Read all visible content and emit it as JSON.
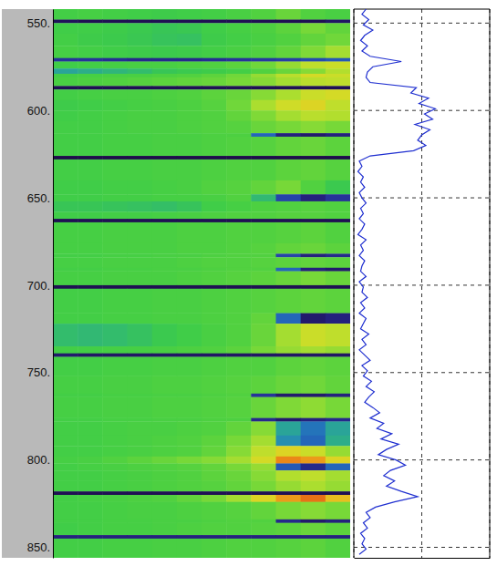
{
  "chart_data": {
    "type": "heatmap",
    "ylim": [
      542,
      856
    ],
    "yticks": [
      {
        "value": 550,
        "label": "550."
      },
      {
        "value": 600,
        "label": "600."
      },
      {
        "value": 650,
        "label": "650."
      },
      {
        "value": 700,
        "label": "700."
      },
      {
        "value": 750,
        "label": "750."
      },
      {
        "value": 800,
        "label": "800."
      },
      {
        "value": 850,
        "label": "850."
      }
    ],
    "tick_labels": "y",
    "grid": true,
    "heatmap": {
      "zlim": [
        0,
        10
      ],
      "y_edges": [
        542,
        548,
        550,
        556,
        563,
        570,
        572,
        576,
        579,
        581,
        586,
        588,
        594,
        600,
        606,
        613,
        615,
        626,
        628,
        640,
        648,
        652,
        658,
        662,
        664,
        676,
        682,
        684,
        690,
        692,
        700,
        702,
        716,
        722,
        735,
        739,
        741,
        752,
        762,
        764,
        776,
        778,
        786,
        792,
        798,
        802,
        806,
        812,
        818,
        820,
        824,
        834,
        836,
        843,
        845,
        856
      ],
      "cells": [
        [
          4.6,
          4.7,
          4.6,
          4.5,
          4.4,
          4.5,
          4.6,
          4.8,
          5.0,
          5.4,
          5.0,
          4.8
        ],
        [
          0.4,
          0.3,
          0.3,
          0.3,
          0.3,
          0.3,
          0.3,
          0.3,
          0.3,
          0.3,
          0.3,
          0.5
        ],
        [
          4.5,
          4.5,
          4.4,
          4.2,
          4.0,
          4.1,
          4.5,
          4.7,
          4.9,
          5.2,
          5.6,
          5.3
        ],
        [
          4.6,
          4.4,
          4.3,
          4.1,
          3.9,
          3.8,
          4.4,
          4.6,
          4.8,
          5.0,
          5.3,
          5.5
        ],
        [
          4.7,
          4.6,
          4.5,
          4.4,
          4.3,
          4.4,
          4.6,
          4.8,
          5.0,
          5.3,
          5.7,
          6.2
        ],
        [
          1.2,
          1.2,
          1.1,
          1.0,
          1.0,
          1.0,
          1.1,
          1.2,
          1.3,
          1.4,
          1.6,
          1.8
        ],
        [
          4.5,
          4.6,
          4.7,
          4.8,
          4.8,
          4.9,
          5.0,
          5.2,
          5.5,
          6.0,
          6.6,
          6.8
        ],
        [
          3.0,
          3.2,
          3.4,
          3.6,
          4.0,
          4.2,
          4.4,
          4.6,
          5.0,
          5.4,
          5.8,
          6.4
        ],
        [
          4.6,
          4.7,
          4.8,
          4.8,
          4.9,
          5.0,
          5.2,
          5.5,
          6.0,
          6.5,
          7.0,
          6.8
        ],
        [
          4.8,
          4.9,
          5.0,
          5.1,
          5.2,
          5.3,
          5.4,
          5.6,
          5.8,
          6.2,
          6.5,
          6.6
        ],
        [
          0.3,
          0.3,
          0.3,
          0.3,
          0.3,
          0.3,
          0.3,
          0.3,
          0.3,
          0.3,
          0.3,
          0.3
        ],
        [
          4.6,
          4.7,
          4.8,
          4.8,
          4.9,
          5.0,
          5.2,
          5.4,
          5.8,
          6.3,
          6.8,
          7.0
        ],
        [
          4.4,
          4.5,
          4.6,
          4.7,
          4.8,
          4.9,
          5.1,
          5.5,
          6.3,
          6.9,
          7.2,
          6.6
        ],
        [
          4.5,
          4.6,
          4.7,
          4.8,
          4.8,
          4.9,
          5.0,
          5.3,
          5.7,
          6.2,
          6.5,
          6.4
        ],
        [
          4.6,
          4.6,
          4.7,
          4.8,
          4.8,
          4.9,
          5.0,
          5.1,
          5.4,
          5.6,
          5.8,
          5.6
        ],
        [
          4.6,
          4.6,
          4.7,
          4.7,
          4.8,
          4.8,
          4.9,
          4.9,
          2.0,
          0.8,
          0.6,
          0.8
        ],
        [
          4.6,
          4.6,
          4.7,
          4.7,
          4.8,
          4.8,
          4.9,
          5.0,
          5.1,
          5.3,
          5.4,
          5.2
        ],
        [
          0.2,
          0.2,
          0.2,
          0.2,
          0.2,
          0.2,
          0.2,
          0.2,
          0.2,
          0.2,
          0.2,
          0.2
        ],
        [
          4.6,
          4.6,
          4.7,
          4.7,
          4.8,
          4.8,
          4.9,
          5.0,
          5.0,
          5.2,
          5.3,
          5.1
        ],
        [
          4.5,
          4.5,
          4.6,
          4.6,
          4.7,
          4.8,
          5.0,
          5.1,
          5.3,
          5.6,
          5.0,
          4.2
        ],
        [
          4.5,
          4.5,
          4.6,
          4.6,
          4.7,
          4.7,
          4.8,
          5.0,
          3.5,
          1.5,
          0.8,
          1.2
        ],
        [
          4.0,
          4.0,
          3.9,
          3.8,
          3.7,
          3.9,
          4.5,
          4.7,
          4.9,
          5.0,
          5.1,
          5.0
        ],
        [
          4.5,
          4.5,
          4.6,
          4.6,
          4.7,
          4.8,
          4.9,
          5.0,
          5.0,
          5.1,
          5.1,
          5.0
        ],
        [
          0.3,
          0.3,
          0.3,
          0.3,
          0.3,
          0.3,
          0.3,
          0.3,
          0.3,
          0.3,
          0.3,
          0.3
        ],
        [
          4.7,
          4.7,
          4.8,
          4.8,
          4.8,
          4.9,
          4.9,
          5.0,
          5.0,
          5.1,
          5.2,
          5.0
        ],
        [
          4.7,
          4.7,
          4.8,
          4.8,
          4.8,
          4.9,
          4.9,
          5.0,
          5.1,
          5.3,
          5.4,
          5.2
        ],
        [
          4.6,
          4.6,
          4.7,
          4.7,
          4.8,
          4.8,
          4.9,
          5.0,
          5.0,
          1.5,
          0.8,
          1.0
        ],
        [
          4.7,
          4.7,
          4.8,
          4.8,
          4.8,
          4.9,
          5.0,
          5.0,
          5.1,
          5.2,
          5.3,
          5.2
        ],
        [
          4.6,
          4.6,
          4.7,
          4.7,
          4.8,
          4.8,
          4.9,
          5.0,
          5.0,
          2.0,
          0.8,
          0.6
        ],
        [
          4.7,
          4.7,
          4.8,
          4.8,
          4.8,
          4.9,
          5.0,
          5.1,
          5.2,
          5.4,
          5.6,
          5.4
        ],
        [
          0.3,
          0.3,
          0.3,
          0.3,
          0.3,
          0.3,
          0.3,
          0.3,
          0.3,
          0.3,
          0.3,
          0.3
        ],
        [
          4.6,
          4.6,
          4.7,
          4.7,
          4.8,
          4.8,
          4.9,
          5.0,
          5.1,
          5.2,
          5.3,
          5.2
        ],
        [
          4.6,
          4.6,
          4.7,
          4.7,
          4.8,
          4.8,
          4.9,
          5.0,
          5.3,
          2.0,
          0.6,
          0.8
        ],
        [
          3.6,
          3.5,
          3.6,
          3.8,
          4.2,
          4.5,
          4.8,
          5.0,
          5.4,
          6.2,
          6.8,
          6.6
        ],
        [
          4.6,
          4.6,
          4.7,
          4.7,
          4.8,
          4.9,
          5.0,
          5.2,
          5.6,
          6.0,
          6.2,
          6.0
        ],
        [
          0.6,
          0.5,
          0.5,
          0.5,
          0.5,
          0.5,
          0.5,
          0.5,
          0.5,
          0.5,
          0.5,
          0.5
        ],
        [
          4.6,
          4.6,
          4.7,
          4.7,
          4.8,
          4.8,
          4.9,
          5.0,
          5.0,
          5.2,
          5.3,
          5.2
        ],
        [
          4.7,
          4.7,
          4.8,
          4.8,
          4.9,
          4.9,
          5.0,
          5.1,
          5.2,
          5.4,
          5.5,
          5.3
        ],
        [
          4.6,
          4.6,
          4.7,
          4.7,
          4.8,
          4.8,
          4.9,
          5.0,
          1.2,
          0.6,
          0.6,
          0.8
        ],
        [
          4.7,
          4.7,
          4.8,
          4.8,
          4.9,
          4.9,
          5.0,
          5.1,
          5.4,
          5.7,
          5.9,
          5.6
        ],
        [
          4.6,
          4.6,
          4.7,
          4.7,
          4.8,
          4.8,
          4.9,
          4.9,
          1.0,
          0.6,
          0.8,
          1.0
        ],
        [
          4.6,
          4.6,
          4.7,
          4.8,
          4.8,
          4.9,
          5.0,
          5.3,
          5.8,
          3.0,
          2.2,
          3.0
        ],
        [
          4.6,
          4.6,
          4.7,
          4.8,
          4.9,
          5.0,
          5.2,
          5.6,
          6.2,
          2.6,
          2.0,
          3.2
        ],
        [
          4.6,
          4.6,
          4.7,
          4.8,
          4.9,
          5.0,
          5.3,
          5.8,
          6.6,
          7.2,
          6.8,
          6.0
        ],
        [
          4.7,
          4.8,
          5.0,
          5.2,
          5.4,
          5.6,
          5.8,
          6.2,
          7.0,
          8.2,
          8.0,
          7.2
        ],
        [
          4.6,
          4.7,
          4.8,
          4.9,
          5.0,
          5.1,
          5.3,
          5.6,
          6.0,
          1.8,
          1.0,
          2.0
        ],
        [
          4.6,
          4.6,
          4.7,
          4.8,
          4.9,
          5.0,
          5.2,
          5.4,
          5.8,
          6.4,
          6.6,
          6.2
        ],
        [
          4.6,
          4.6,
          4.7,
          4.8,
          4.9,
          5.0,
          5.1,
          5.3,
          5.6,
          6.0,
          6.3,
          6.0
        ],
        [
          0.3,
          0.3,
          0.3,
          0.3,
          0.3,
          0.3,
          0.3,
          0.3,
          0.3,
          0.3,
          0.3,
          0.3
        ],
        [
          4.6,
          4.7,
          4.8,
          4.9,
          5.0,
          5.3,
          5.6,
          6.2,
          7.2,
          8.0,
          8.4,
          7.6
        ],
        [
          4.6,
          4.6,
          4.7,
          4.8,
          4.8,
          4.9,
          5.0,
          5.1,
          5.3,
          5.6,
          5.8,
          5.6
        ],
        [
          4.6,
          4.6,
          4.7,
          4.7,
          4.8,
          4.8,
          4.9,
          5.0,
          5.0,
          1.0,
          0.6,
          0.8
        ],
        [
          4.5,
          4.6,
          4.7,
          4.7,
          4.8,
          4.9,
          5.0,
          5.0,
          5.1,
          5.2,
          5.4,
          5.2
        ],
        [
          0.8,
          0.8,
          0.8,
          0.8,
          0.8,
          0.8,
          0.8,
          0.8,
          0.8,
          0.8,
          0.8,
          0.8
        ],
        [
          4.6,
          4.6,
          4.7,
          4.7,
          4.8,
          4.8,
          4.9,
          5.0,
          5.0,
          5.1,
          5.2,
          5.0
        ]
      ]
    },
    "curve": {
      "type": "line",
      "color": "#1f2fd0",
      "xlim": [
        0,
        100
      ],
      "xticks": [
        0,
        50,
        100
      ],
      "depth": [
        542,
        545,
        548,
        551,
        554,
        557,
        560,
        563,
        566,
        569,
        572,
        575,
        578,
        581,
        584,
        587,
        590,
        593,
        596,
        599,
        602,
        605,
        608,
        611,
        614,
        617,
        620,
        623,
        626,
        629,
        632,
        635,
        638,
        641,
        644,
        647,
        650,
        653,
        656,
        659,
        662,
        665,
        668,
        671,
        674,
        677,
        680,
        683,
        686,
        689,
        692,
        695,
        698,
        701,
        704,
        707,
        710,
        713,
        716,
        719,
        722,
        725,
        728,
        731,
        734,
        737,
        740,
        743,
        746,
        749,
        752,
        755,
        758,
        761,
        764,
        767,
        770,
        773,
        776,
        779,
        782,
        785,
        788,
        791,
        794,
        797,
        800,
        803,
        806,
        809,
        812,
        815,
        818,
        821,
        824,
        827,
        830,
        833,
        836,
        839,
        842,
        845,
        848,
        851,
        854
      ],
      "values": [
        9,
        6,
        11,
        7,
        14,
        8,
        5,
        10,
        6,
        12,
        35,
        14,
        10,
        9,
        12,
        46,
        42,
        55,
        48,
        60,
        52,
        58,
        45,
        56,
        50,
        47,
        53,
        44,
        12,
        4,
        6,
        3,
        7,
        5,
        8,
        4,
        6,
        9,
        5,
        7,
        4,
        8,
        6,
        3,
        9,
        5,
        7,
        4,
        8,
        6,
        5,
        9,
        4,
        7,
        6,
        10,
        5,
        8,
        4,
        9,
        7,
        5,
        11,
        6,
        9,
        4,
        8,
        12,
        6,
        10,
        7,
        13,
        9,
        15,
        11,
        8,
        14,
        19,
        12,
        22,
        17,
        28,
        20,
        33,
        24,
        18,
        31,
        38,
        27,
        22,
        30,
        24,
        35,
        47,
        30,
        16,
        9,
        12,
        7,
        10,
        5,
        8,
        6,
        9,
        4
      ]
    }
  }
}
